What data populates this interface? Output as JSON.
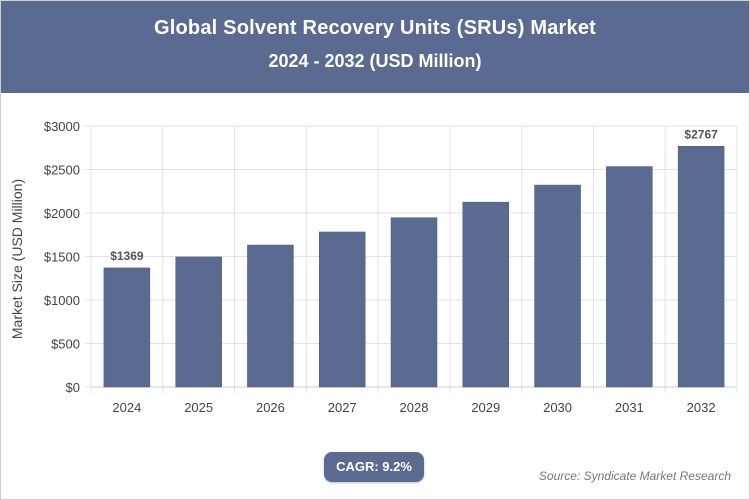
{
  "header": {
    "title": "Global Solvent Recovery Units (SRUs) Market",
    "subtitle": "2024 - 2032 (USD Million)"
  },
  "chart_data": {
    "type": "bar",
    "categories": [
      "2024",
      "2025",
      "2026",
      "2027",
      "2028",
      "2029",
      "2030",
      "2031",
      "2032"
    ],
    "values": [
      1369,
      1495,
      1632,
      1782,
      1946,
      2125,
      2321,
      2534,
      2767
    ],
    "ylabel": "Market Size (USD Million)",
    "xlabel": "",
    "ylim": [
      0,
      3000
    ],
    "yticks": [
      0,
      500,
      1000,
      1500,
      2000,
      2500,
      3000
    ],
    "ytick_labels": [
      "$0",
      "$500",
      "$1000",
      "$1500",
      "$2000",
      "$2500",
      "$3000"
    ],
    "data_labels": [
      {
        "index": 0,
        "text": "$1369"
      },
      {
        "index": 8,
        "text": "$2767"
      }
    ],
    "grid": true,
    "bar_color": "#5b6a90"
  },
  "footer": {
    "cagr": "CAGR: 9.2%",
    "source": "Source: Syndicate Market Research"
  }
}
